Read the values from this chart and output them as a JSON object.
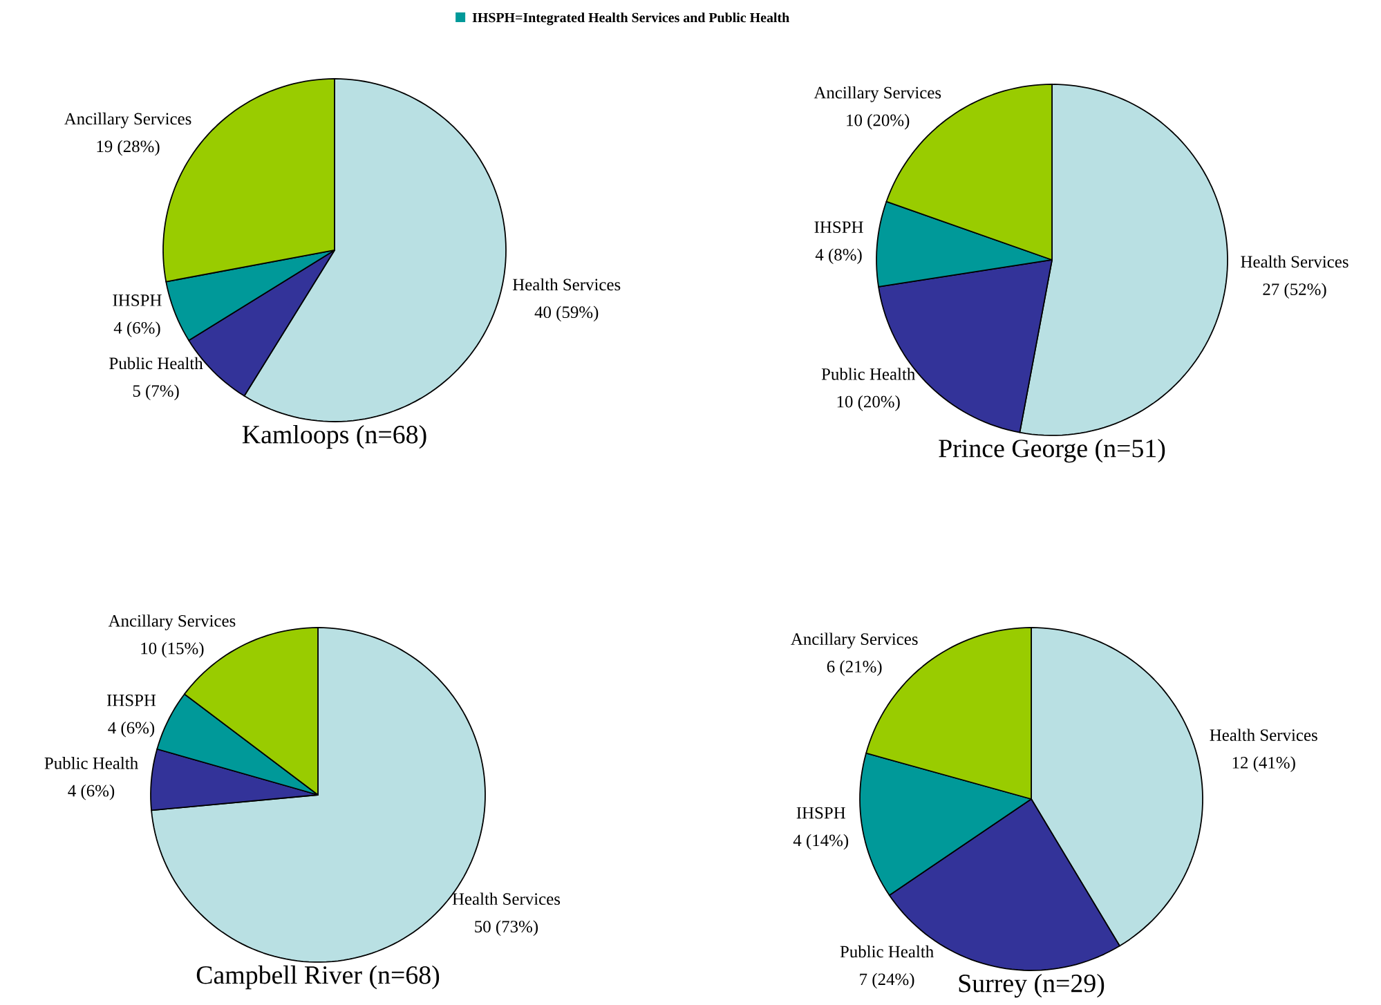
{
  "chart_data": [
    {
      "type": "pie",
      "title": "Kamloops (n=68)",
      "categories": [
        "Health Services",
        "Public Health",
        "IHSPH",
        "Ancillary Services"
      ],
      "values": [
        40,
        5,
        4,
        19
      ],
      "value_labels": [
        "40 (59%)",
        "5 (7%)",
        "4 (6%)",
        "19 (28%)"
      ],
      "colors": [
        "#b9e0e3",
        "#333399",
        "#009999",
        "#99cc00"
      ],
      "annotations": [
        "IHSPH=Integrated Health Services and Public Health"
      ]
    },
    {
      "type": "pie",
      "title": "Prince George (n=51)",
      "categories": [
        "Health Services",
        "Public Health",
        "IHSPH",
        "Ancillary Services"
      ],
      "values": [
        27,
        10,
        4,
        10
      ],
      "value_labels": [
        "27 (52%)",
        "10 (20%)",
        "4 (8%)",
        "10 (20%)"
      ],
      "colors": [
        "#b9e0e3",
        "#333399",
        "#009999",
        "#99cc00"
      ]
    },
    {
      "type": "pie",
      "title": "Campbell River (n=68)",
      "categories": [
        "Health Services",
        "Public Health",
        "IHSPH",
        "Ancillary Services"
      ],
      "values": [
        50,
        4,
        4,
        10
      ],
      "value_labels": [
        "50 (73%)",
        "4 (6%)",
        "4 (6%)",
        "10 (15%)"
      ],
      "colors": [
        "#b9e0e3",
        "#333399",
        "#009999",
        "#99cc00"
      ]
    },
    {
      "type": "pie",
      "title": "Surrey (n=29)",
      "categories": [
        "Health Services",
        "Public Health",
        "IHSPH",
        "Ancillary Services"
      ],
      "values": [
        12,
        7,
        4,
        6
      ],
      "value_labels": [
        "12 (41%)",
        "7 (24%)",
        "4 (14%)",
        "6 (21%)"
      ],
      "colors": [
        "#b9e0e3",
        "#333399",
        "#009999",
        "#99cc00"
      ]
    }
  ]
}
